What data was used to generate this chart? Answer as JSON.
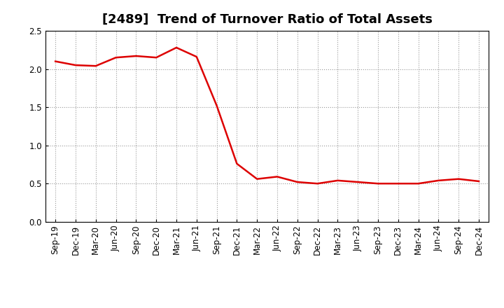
{
  "title": "[2489]  Trend of Turnover Ratio of Total Assets",
  "x_labels": [
    "Sep-19",
    "Dec-19",
    "Mar-20",
    "Jun-20",
    "Sep-20",
    "Dec-20",
    "Mar-21",
    "Jun-21",
    "Sep-21",
    "Dec-21",
    "Mar-22",
    "Jun-22",
    "Sep-22",
    "Dec-22",
    "Mar-23",
    "Jun-23",
    "Sep-23",
    "Dec-23",
    "Mar-24",
    "Jun-24",
    "Sep-24",
    "Dec-24"
  ],
  "y_values": [
    2.1,
    2.05,
    2.04,
    2.15,
    2.17,
    2.15,
    2.28,
    2.16,
    1.52,
    0.76,
    0.56,
    0.59,
    0.52,
    0.5,
    0.54,
    0.52,
    0.5,
    0.5,
    0.5,
    0.54,
    0.56,
    0.53
  ],
  "line_color": "#dd0000",
  "line_width": 1.8,
  "ylim": [
    0.0,
    2.5
  ],
  "yticks": [
    0.0,
    0.5,
    1.0,
    1.5,
    2.0,
    2.5
  ],
  "ytick_labels": [
    "0.0",
    "0.5",
    "1.0",
    "1.5",
    "2.0",
    "2.5"
  ],
  "background_color": "#ffffff",
  "grid_color": "#999999",
  "title_fontsize": 13,
  "tick_fontsize": 8.5,
  "title_fontweight": "bold"
}
